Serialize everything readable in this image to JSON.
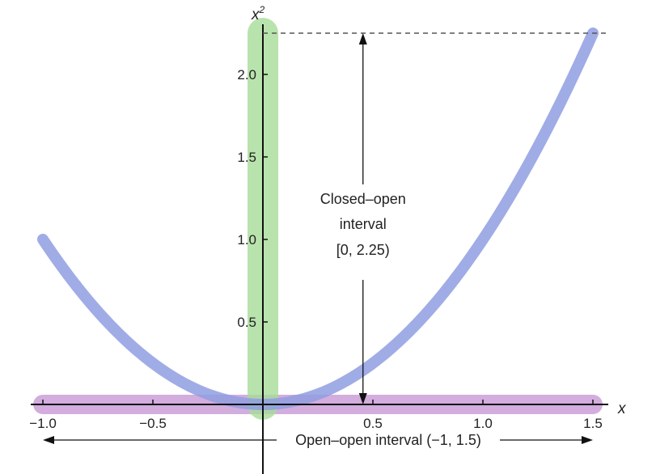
{
  "chart_data": {
    "type": "line",
    "title": "",
    "xlabel": "x",
    "ylabel": "x²",
    "ylabel_base": "x",
    "ylabel_exp": "2",
    "xlim": [
      -1.0,
      1.5
    ],
    "ylim": [
      0,
      2.25
    ],
    "grid": false,
    "x_ticks": [
      "−1.0",
      "−0.5",
      "0.5",
      "1.0",
      "1.5"
    ],
    "y_ticks": [
      "0.5",
      "1.0",
      "1.5",
      "2.0"
    ],
    "x_tick_values": [
      -1.0,
      -0.5,
      0.5,
      1.0,
      1.5
    ],
    "y_tick_values": [
      0.5,
      1.0,
      1.5,
      2.0
    ],
    "curve": {
      "function": "x^2",
      "domain": [
        -1.0,
        1.5
      ],
      "color": "#8f9ee0"
    },
    "bands": {
      "domain": {
        "interval": [
          -1.0,
          1.5
        ],
        "color": "#cc9fd9"
      },
      "range": {
        "interval": [
          0,
          2.25
        ],
        "color": "#a8dd99"
      }
    },
    "dashed_line_y": 2.25,
    "annotations": {
      "closed_open_lines": [
        "Closed–open",
        "interval",
        "[0, 2.25)"
      ],
      "open_open": "Open–open interval (−1, 1.5)"
    }
  }
}
